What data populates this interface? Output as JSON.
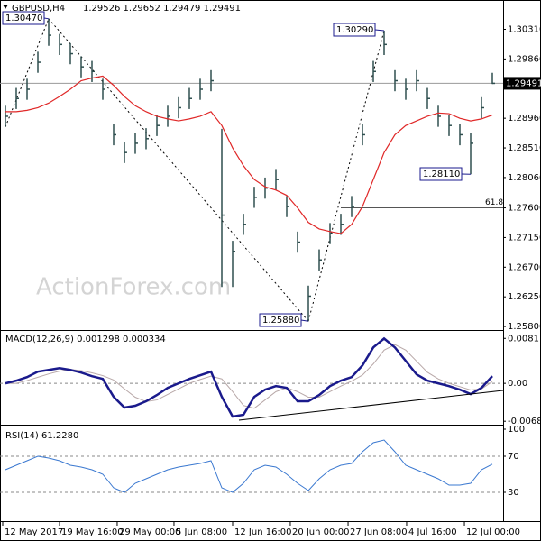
{
  "chart_data": [
    {
      "type": "ohlc",
      "title": "GBPUSD,H4",
      "title_values": "1.29526 1.29652 1.29479 1.29491",
      "watermark": "ActionForex.com",
      "color": "#2f4f4f",
      "high": [
        1.2915,
        1.2942,
        1.2956,
        1.2997,
        1.3047,
        1.3024,
        1.301,
        1.299,
        1.2983,
        1.2956,
        1.2887,
        1.286,
        1.2874,
        1.2881,
        1.2901,
        1.2915,
        1.2928,
        1.2942,
        1.2956,
        1.2969,
        1.288,
        1.271,
        1.2751,
        1.2792,
        1.2806,
        1.2819,
        1.2778,
        1.2724,
        1.2642,
        1.2697,
        1.2737,
        1.2751,
        1.2778,
        1.2887,
        1.2983,
        1.3029,
        1.2969,
        1.2956,
        1.2969,
        1.2942,
        1.2915,
        1.2901,
        1.2887,
        1.2874,
        1.2928,
        1.2965
      ],
      "low": [
        1.2883,
        1.291,
        1.2924,
        1.2965,
        1.3006,
        1.2992,
        1.2978,
        1.2958,
        1.2951,
        1.2924,
        1.2855,
        1.2828,
        1.2842,
        1.2849,
        1.2869,
        1.2883,
        1.2896,
        1.291,
        1.2924,
        1.2937,
        1.264,
        1.264,
        1.2719,
        1.276,
        1.2774,
        1.2787,
        1.2746,
        1.2692,
        1.2588,
        1.2665,
        1.2705,
        1.2719,
        1.2746,
        1.2855,
        1.2951,
        1.2992,
        1.2937,
        1.2924,
        1.2937,
        1.291,
        1.2883,
        1.2869,
        1.2855,
        1.2811,
        1.2896,
        1.2948
      ],
      "close": [
        1.2899,
        1.2926,
        1.294,
        1.2981,
        1.3022,
        1.3008,
        1.2994,
        1.2974,
        1.2967,
        1.294,
        1.2871,
        1.2844,
        1.2858,
        1.2865,
        1.2885,
        1.2899,
        1.2912,
        1.2926,
        1.294,
        1.2953,
        1.2749,
        1.2694,
        1.2735,
        1.2776,
        1.279,
        1.2803,
        1.2762,
        1.2708,
        1.2626,
        1.2681,
        1.2721,
        1.2735,
        1.2762,
        1.2871,
        1.2967,
        1.3008,
        1.2953,
        1.294,
        1.2953,
        1.2926,
        1.2899,
        1.2885,
        1.2871,
        1.2858,
        1.2912,
        1.2949
      ],
      "overlay": {
        "color": "#e02828",
        "values": [
          1.2906,
          1.2906,
          1.2908,
          1.2912,
          1.2919,
          1.2929,
          1.294,
          1.2953,
          1.2957,
          1.296,
          1.2946,
          1.2929,
          1.2915,
          1.2906,
          1.2899,
          1.2895,
          1.2892,
          1.2895,
          1.2899,
          1.2906,
          1.2885,
          1.2851,
          1.2824,
          1.2803,
          1.2792,
          1.2787,
          1.2779,
          1.276,
          1.2738,
          1.2728,
          1.2724,
          1.2721,
          1.2735,
          1.2762,
          1.2803,
          1.2844,
          1.2871,
          1.2885,
          1.2892,
          1.2899,
          1.2904,
          1.2903,
          1.2896,
          1.2892,
          1.2895,
          1.2901
        ]
      },
      "current_price": "1.29491",
      "annotations": [
        "1.30470",
        "1.30290",
        "1.25880",
        "1.28110"
      ],
      "fib_level": {
        "value": 1.276,
        "label": "61.8"
      },
      "xlim": [
        -0.5,
        46
      ],
      "ylim": [
        1.2576,
        1.307
      ],
      "yticks": [
        {
          "value": 1.3031,
          "label": "1.30310"
        },
        {
          "value": 1.2986,
          "label": "1.29860"
        },
        {
          "value": 1.2896,
          "label": "1.28960"
        },
        {
          "value": 1.2851,
          "label": "1.28510"
        },
        {
          "value": 1.2806,
          "label": "1.28060"
        },
        {
          "value": 1.276,
          "label": "1.27600"
        },
        {
          "value": 1.2715,
          "label": "1.27150"
        },
        {
          "value": 1.267,
          "label": "1.26700"
        },
        {
          "value": 1.2625,
          "label": "1.26250"
        },
        {
          "value": 1.258,
          "label": "1.25800"
        }
      ],
      "xticks": [
        {
          "value": -0.25,
          "label": "12 May 2017"
        },
        {
          "value": 5,
          "label": "19 May 16:00"
        },
        {
          "value": 10.33,
          "label": "29 May 00:00"
        },
        {
          "value": 15.58,
          "label": "5 Jun 08:00"
        },
        {
          "value": 21,
          "label": "12 Jun 16:00"
        },
        {
          "value": 26.33,
          "label": "20 Jun 00:00"
        },
        {
          "value": 31.67,
          "label": "27 Jun 08:00"
        },
        {
          "value": 37.08,
          "label": "4 Jul 16:00"
        },
        {
          "value": 42.42,
          "label": "12 Jul 00:00"
        }
      ]
    },
    {
      "type": "line",
      "title": "MACD(12,26,9) 0.001298 0.000334",
      "series": [
        {
          "color": "#1a1a8c",
          "values": [
            0,
            0.00049,
            0.00113,
            0.00211,
            0.00243,
            0.00275,
            0.00243,
            0.00194,
            0.0013,
            0.00081,
            -0.00243,
            -0.00437,
            -0.00405,
            -0.00324,
            -0.00211,
            -0.00081,
            0,
            0.00081,
            0.00146,
            0.00211,
            -0.00243,
            -0.00599,
            -0.00567,
            -0.00243,
            -0.00113,
            -0.00049,
            -0.00081,
            -0.00324,
            -0.00324,
            -0.00211,
            -0.00049,
            0.00049,
            0.00113,
            0.00324,
            0.00648,
            0.0081,
            0.00648,
            0.00405,
            0.00162,
            0.00049,
            0,
            -0.00049,
            -0.00113,
            -0.00194,
            -0.00081,
            0.0013
          ]
        },
        {
          "color": "#b8a8a8",
          "values": [
            0,
            0,
            0.0005,
            0.0011,
            0.0017,
            0.0022,
            0.0025,
            0.0023,
            0.0019,
            0.0014,
            0.0006,
            -0.001,
            -0.0025,
            -0.0033,
            -0.003,
            -0.002,
            -0.001,
            0,
            0.0007,
            0.0013,
            0.0008,
            -0.0015,
            -0.004,
            -0.0045,
            -0.003,
            -0.0015,
            -0.0008,
            -0.0015,
            -0.0025,
            -0.0025,
            -0.0015,
            -0.0005,
            0.0004,
            0.0015,
            0.0035,
            0.006,
            0.007,
            0.006,
            0.004,
            0.002,
            0.0008,
            0,
            -0.0006,
            -0.0012,
            -0.001,
            0.0003
          ]
        }
      ],
      "levels": [
        0
      ],
      "xlim": [
        -0.5,
        46
      ],
      "ylim": [
        -0.0073,
        0.0093
      ],
      "yticks": [
        0.008118,
        {
          "value": 0,
          "label": "0.00"
        },
        -0.006844
      ]
    },
    {
      "type": "line",
      "title": "RSI(14) 61.2280",
      "series": [
        {
          "color": "#3a78d0",
          "values": [
            55,
            60,
            65,
            70,
            68,
            65,
            60,
            58,
            55,
            50,
            35,
            30,
            40,
            45,
            50,
            55,
            58,
            60,
            62,
            65,
            35,
            30,
            40,
            55,
            60,
            58,
            50,
            40,
            32,
            45,
            55,
            60,
            62,
            75,
            85,
            88,
            75,
            60,
            55,
            50,
            45,
            38,
            38,
            40,
            55,
            61.228
          ]
        }
      ],
      "levels": [
        70,
        30
      ],
      "xlim": [
        -0.5,
        46
      ],
      "ylim": [
        0,
        100
      ],
      "yticks": [
        100,
        70,
        30
      ]
    }
  ]
}
